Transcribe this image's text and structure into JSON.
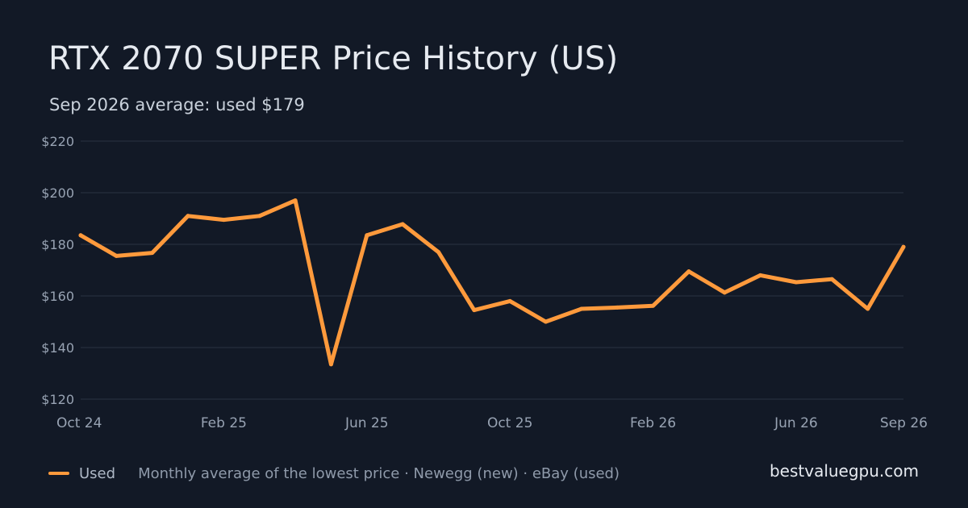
{
  "title": "RTX 2070 SUPER Price History (US)",
  "subtitle": "Sep 2026 average: used $179",
  "legend": {
    "label": "Used"
  },
  "footer_note": "Monthly average of the lowest price · Newegg (new) · eBay (used)",
  "brand": "bestvaluegpu.com",
  "colors": {
    "background": "#121926",
    "series_used": "#FF9A3C",
    "grid": "#2A3342",
    "tick_text": "#98A3B3"
  },
  "chart_data": {
    "type": "line",
    "title": "RTX 2070 SUPER Price History (US)",
    "subtitle": "Sep 2026 average: used $179",
    "x": [
      "Oct 24",
      "Nov 24",
      "Dec 24",
      "Jan 25",
      "Feb 25",
      "Mar 25",
      "Apr 25",
      "May 25",
      "Jun 25",
      "Jul 25",
      "Aug 25",
      "Sep 25",
      "Oct 25",
      "Nov 25",
      "Dec 25",
      "Jan 26",
      "Feb 26",
      "Mar 26",
      "Apr 26",
      "May 26",
      "Jun 26",
      "Jul 26",
      "Aug 26",
      "Sep 26"
    ],
    "x_tick_labels": [
      "Oct 24",
      "Feb 25",
      "Jun 25",
      "Oct 25",
      "Feb 26",
      "Jun 26",
      "Sep 26"
    ],
    "y_tick_labels": [
      "$220",
      "$200",
      "$180",
      "$160",
      "$140",
      "$120"
    ],
    "y_ticks": [
      220,
      200,
      180,
      160,
      140,
      120
    ],
    "ylim": [
      120,
      220
    ],
    "xlabel": "",
    "ylabel": "",
    "grid": true,
    "legend_position": "bottom-left",
    "series": [
      {
        "name": "Used",
        "color": "#FF9A3C",
        "values": [
          183.5,
          175.5,
          176.7,
          191,
          189.5,
          191,
          197,
          133.5,
          183.5,
          187.8,
          177,
          154.5,
          158,
          150,
          155,
          155.5,
          156.2,
          169.5,
          161.3,
          168,
          165.3,
          166.5,
          155,
          179
        ]
      }
    ]
  }
}
